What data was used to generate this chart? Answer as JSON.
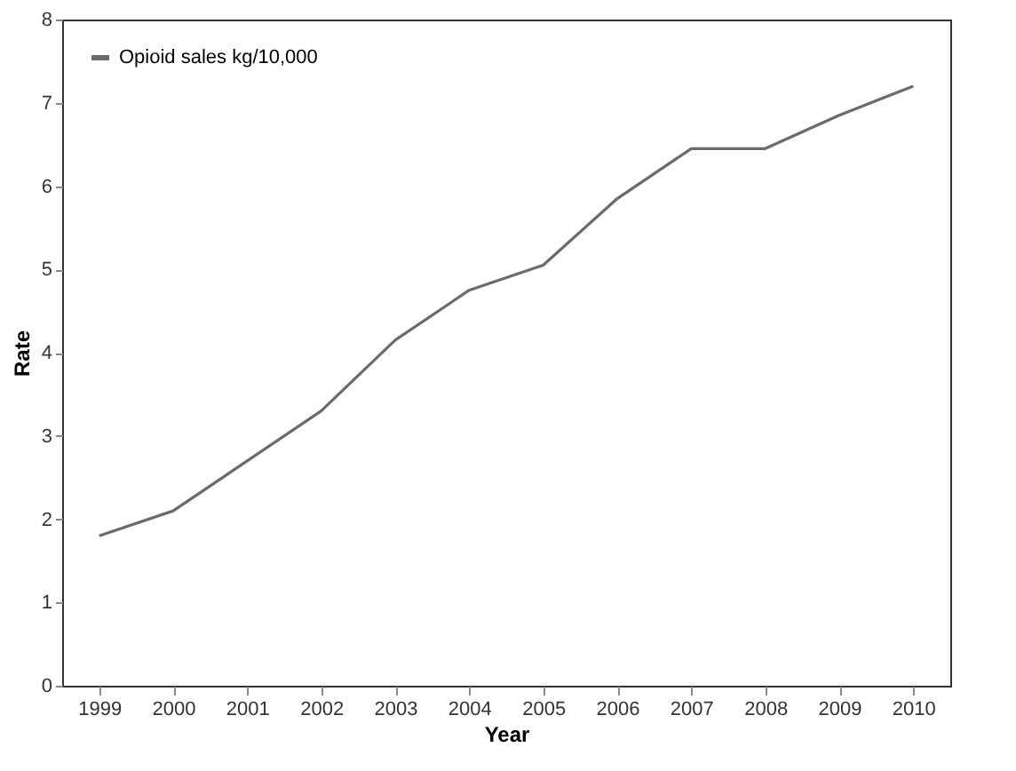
{
  "chart_data": {
    "type": "line",
    "xlabel": "Year",
    "ylabel": "Rate",
    "categories": [
      "1999",
      "2000",
      "2001",
      "2002",
      "2003",
      "2004",
      "2005",
      "2006",
      "2007",
      "2008",
      "2009",
      "2010"
    ],
    "series": [
      {
        "name": "Opioid sales kg/10,000",
        "color": "#6b6b6b",
        "values": [
          1.8,
          2.1,
          2.7,
          3.3,
          4.15,
          4.75,
          5.05,
          5.85,
          6.45,
          6.45,
          6.85,
          7.2
        ]
      }
    ],
    "ylim": [
      0,
      8
    ],
    "yticks": [
      0,
      1,
      2,
      3,
      4,
      5,
      6,
      7,
      8
    ],
    "grid": false,
    "legend": "top left",
    "marker": "none",
    "line_style": "solid"
  }
}
